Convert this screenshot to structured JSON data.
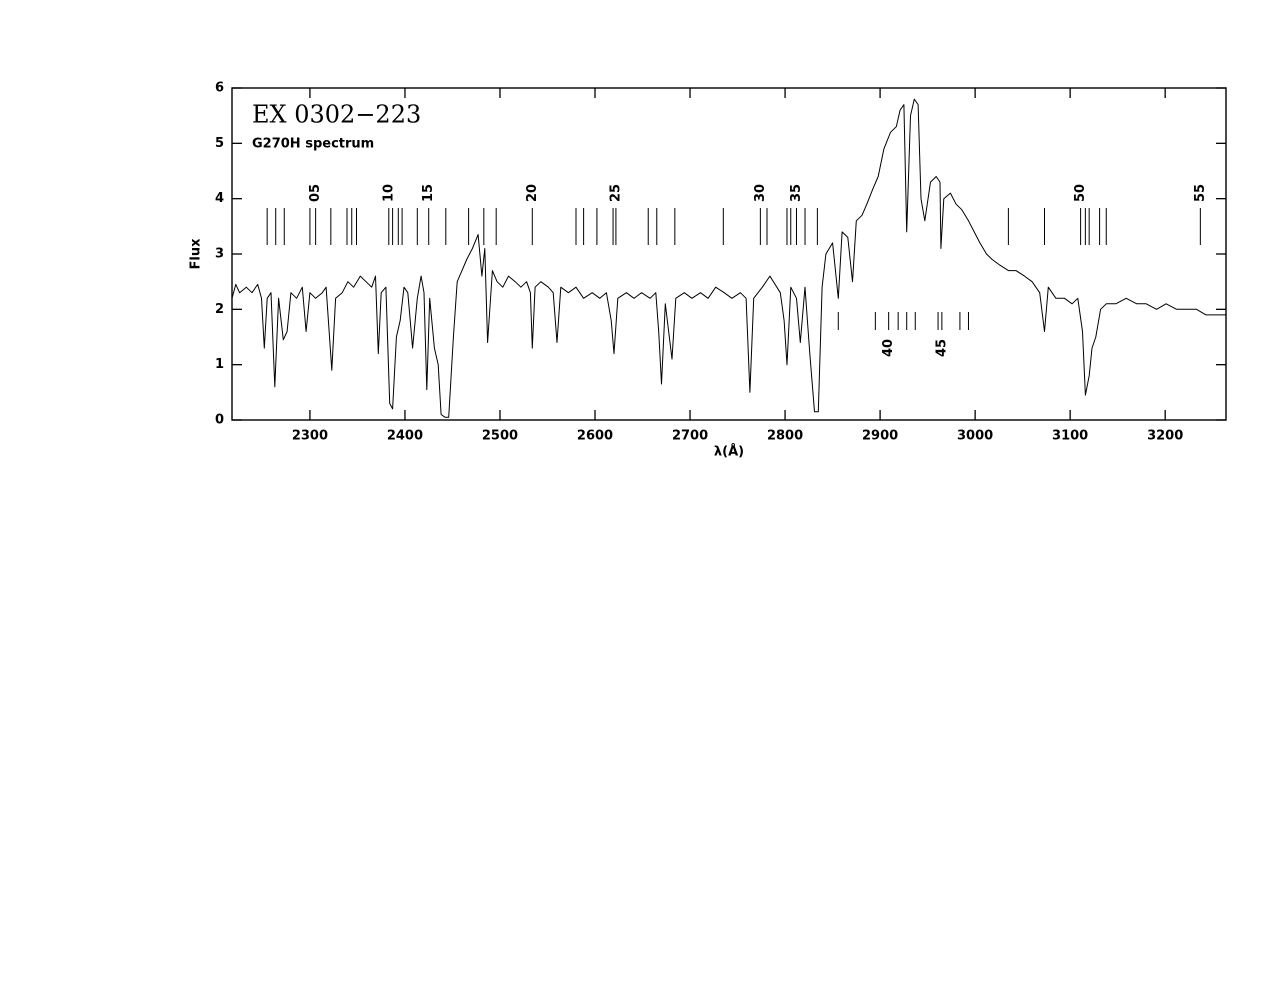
{
  "chart_data": {
    "type": "line",
    "title": "EX 0302−223",
    "subtitle": "G270H spectrum",
    "x_label": "λ(Å)",
    "y_label": "Flux",
    "xlim": [
      2218,
      3264
    ],
    "ylim": [
      0,
      6
    ],
    "xticks": [
      2300,
      2400,
      2500,
      2600,
      2700,
      2800,
      2900,
      3000,
      3100,
      3200
    ],
    "yticks": [
      0,
      1,
      2,
      3,
      4,
      5,
      6
    ],
    "color": "#000000",
    "x": [
      2218,
      2222,
      2226,
      2233,
      2239,
      2245,
      2249,
      2252,
      2255,
      2259,
      2263,
      2267,
      2272,
      2276,
      2280,
      2286,
      2292,
      2296,
      2300,
      2306,
      2313,
      2317,
      2323,
      2327,
      2334,
      2340,
      2346,
      2353,
      2359,
      2365,
      2369,
      2372,
      2375,
      2380,
      2384,
      2387,
      2391,
      2395,
      2399,
      2403,
      2408,
      2413,
      2417,
      2420,
      2423,
      2426,
      2431,
      2435,
      2438,
      2442,
      2446,
      2451,
      2455,
      2460,
      2465,
      2471,
      2477,
      2481,
      2484,
      2487,
      2492,
      2497,
      2503,
      2509,
      2516,
      2522,
      2528,
      2532,
      2534,
      2537,
      2543,
      2551,
      2556,
      2560,
      2564,
      2572,
      2580,
      2588,
      2597,
      2605,
      2612,
      2617,
      2620,
      2624,
      2633,
      2641,
      2649,
      2658,
      2664,
      2667,
      2670,
      2674,
      2681,
      2685,
      2694,
      2702,
      2711,
      2719,
      2727,
      2736,
      2744,
      2753,
      2759,
      2763,
      2767,
      2776,
      2784,
      2795,
      2799,
      2802,
      2806,
      2812,
      2816,
      2821,
      2826,
      2831,
      2835,
      2839,
      2843,
      2850,
      2856,
      2860,
      2866,
      2871,
      2875,
      2881,
      2886,
      2893,
      2898,
      2904,
      2911,
      2917,
      2921,
      2925,
      2928,
      2932,
      2936,
      2940,
      2943,
      2947,
      2953,
      2959,
      2963,
      2964,
      2967,
      2974,
      2980,
      2986,
      2993,
      2999,
      3005,
      3012,
      3018,
      3026,
      3035,
      3043,
      3052,
      3060,
      3068,
      3073,
      3077,
      3085,
      3094,
      3102,
      3108,
      3113,
      3116,
      3120,
      3123,
      3127,
      3132,
      3138,
      3148,
      3159,
      3170,
      3180,
      3191,
      3201,
      3212,
      3222,
      3233,
      3243,
      3254,
      3264
    ],
    "values": [
      2.2,
      2.45,
      2.3,
      2.4,
      2.3,
      2.45,
      2.2,
      1.3,
      2.2,
      2.3,
      0.6,
      2.2,
      1.45,
      1.6,
      2.3,
      2.2,
      2.4,
      1.6,
      2.3,
      2.2,
      2.3,
      2.4,
      0.9,
      2.2,
      2.3,
      2.5,
      2.4,
      2.6,
      2.5,
      2.4,
      2.6,
      1.2,
      2.3,
      2.4,
      0.3,
      0.2,
      1.5,
      1.8,
      2.4,
      2.3,
      1.3,
      2.2,
      2.6,
      2.3,
      0.55,
      2.2,
      1.3,
      1.0,
      0.1,
      0.05,
      0.05,
      1.5,
      2.5,
      2.7,
      2.9,
      3.1,
      3.35,
      2.6,
      3.1,
      1.4,
      2.7,
      2.5,
      2.4,
      2.6,
      2.5,
      2.4,
      2.5,
      2.3,
      1.3,
      2.4,
      2.5,
      2.4,
      2.3,
      1.4,
      2.4,
      2.3,
      2.4,
      2.2,
      2.3,
      2.2,
      2.3,
      1.8,
      1.2,
      2.2,
      2.3,
      2.2,
      2.3,
      2.2,
      2.3,
      1.6,
      0.65,
      2.1,
      1.1,
      2.2,
      2.3,
      2.2,
      2.3,
      2.2,
      2.4,
      2.3,
      2.2,
      2.3,
      2.2,
      0.5,
      2.2,
      2.4,
      2.6,
      2.3,
      1.8,
      1.0,
      2.4,
      2.2,
      1.4,
      2.4,
      1.2,
      0.15,
      0.15,
      2.4,
      3.0,
      3.2,
      2.2,
      3.4,
      3.3,
      2.5,
      3.6,
      3.7,
      3.9,
      4.2,
      4.4,
      4.9,
      5.2,
      5.3,
      5.6,
      5.7,
      3.4,
      5.5,
      5.8,
      5.7,
      4.0,
      3.6,
      4.3,
      4.4,
      4.3,
      3.1,
      4.0,
      4.1,
      3.9,
      3.8,
      3.6,
      3.4,
      3.2,
      3.0,
      2.9,
      2.8,
      2.7,
      2.7,
      2.6,
      2.5,
      2.3,
      1.6,
      2.4,
      2.2,
      2.2,
      2.1,
      2.2,
      1.6,
      0.45,
      0.8,
      1.3,
      1.5,
      2.0,
      2.1,
      2.1,
      2.2,
      2.1,
      2.1,
      2.0,
      2.1,
      2.0,
      2.0,
      2.0,
      1.9,
      1.9,
      1.9
    ],
    "upper_lines": [
      2255,
      2264,
      2273,
      2300,
      2306,
      2322,
      2339,
      2344,
      2349,
      2383,
      2387,
      2393,
      2397,
      2413,
      2425,
      2443,
      2467,
      2483,
      2496,
      2534,
      2580,
      2588,
      2602,
      2619,
      2622,
      2656,
      2665,
      2684,
      2735,
      2774,
      2781,
      2802,
      2806,
      2812,
      2821,
      2834,
      3035,
      3073,
      3111,
      3116,
      3120,
      3131,
      3138,
      3237
    ],
    "lower_lines": [
      2856,
      2895,
      2909,
      2919,
      2928,
      2937,
      2961,
      2965,
      2984,
      2993
    ],
    "upper_labels": [
      {
        "text": "05",
        "x": 2306
      },
      {
        "text": "10",
        "x": 2383
      },
      {
        "text": "15",
        "x": 2425
      },
      {
        "text": "20",
        "x": 2534
      },
      {
        "text": "25",
        "x": 2622
      },
      {
        "text": "30",
        "x": 2774
      },
      {
        "text": "35",
        "x": 2812
      },
      {
        "text": "50",
        "x": 3111
      },
      {
        "text": "55",
        "x": 3237
      }
    ],
    "lower_labels": [
      {
        "text": "40",
        "x": 2909
      },
      {
        "text": "45",
        "x": 2965
      }
    ]
  }
}
